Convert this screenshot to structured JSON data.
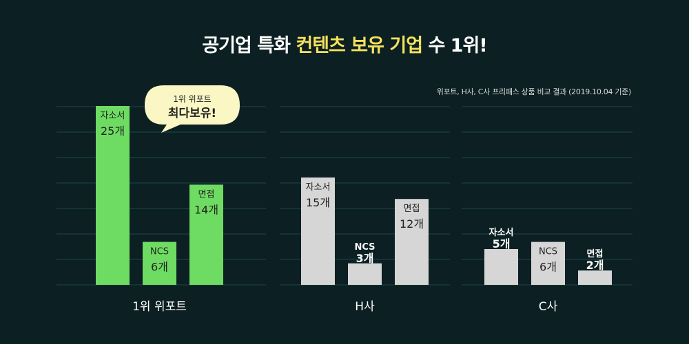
{
  "header": {
    "title_part1": "공기업 특화 ",
    "title_highlight": "컨텐츠 보유 기업",
    "title_part2": " 수 1위!",
    "source": "위포트, H사, C사 프리패스 상품 비교 결과 (2019.10.04 기준)"
  },
  "callout": {
    "line1": "1위 위포트",
    "line2": "최다보유!"
  },
  "colors": {
    "background": "#0c1f22",
    "grid": "#1d4a45",
    "bar_leader": "#6edc62",
    "bar_other": "#d6d6d6",
    "highlight": "#f4e25c"
  },
  "chart_data": [
    {
      "type": "bar",
      "group": "1위 위포트",
      "categories": [
        "자소서",
        "NCS",
        "면접"
      ],
      "values": [
        25,
        6,
        14
      ],
      "value_labels": [
        "25개",
        "6개",
        "14개"
      ],
      "ylim": [
        0,
        28
      ]
    },
    {
      "type": "bar",
      "group": "H사",
      "categories": [
        "자소서",
        "NCS",
        "면접"
      ],
      "values": [
        15,
        3,
        12
      ],
      "value_labels": [
        "15개",
        "3개",
        "12개"
      ],
      "ylim": [
        0,
        28
      ]
    },
    {
      "type": "bar",
      "group": "C사",
      "categories": [
        "자소서",
        "NCS",
        "면접"
      ],
      "values": [
        5,
        6,
        2
      ],
      "value_labels": [
        "5개",
        "6개",
        "2개"
      ],
      "ylim": [
        0,
        28
      ]
    }
  ]
}
